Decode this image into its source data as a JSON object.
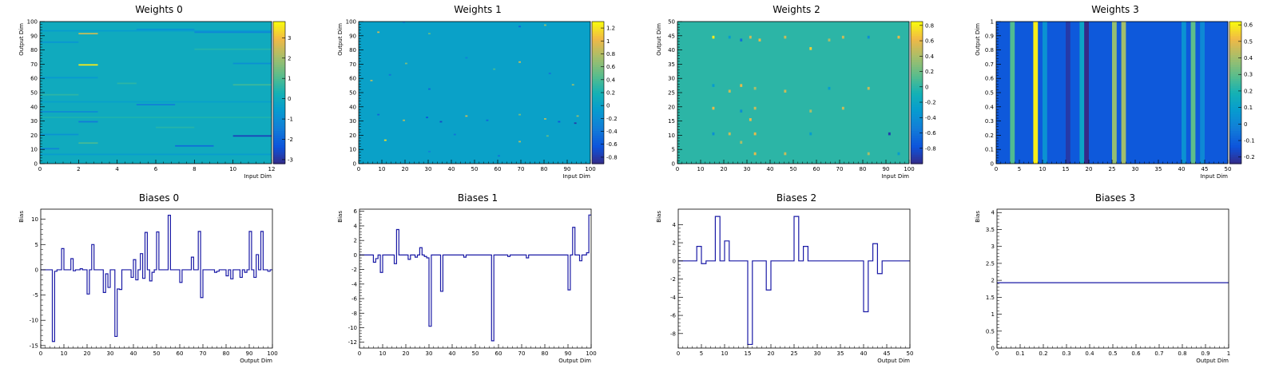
{
  "chart_data": [
    {
      "panel": "weights",
      "type": "heatmap",
      "title": "Weights 0",
      "xlabel": "Input Dim",
      "ylabel": "Output Dim",
      "xlim": [
        0,
        12
      ],
      "ylim": [
        0,
        100
      ],
      "x_ticks": [
        0,
        2,
        4,
        6,
        8,
        10,
        12
      ],
      "y_ticks": [
        0,
        10,
        20,
        30,
        40,
        50,
        60,
        70,
        80,
        90,
        100
      ],
      "zlim": [
        -3.2,
        3.8
      ],
      "z_ticks": [
        -3,
        -2,
        -1,
        0,
        1,
        2,
        3
      ],
      "background_value": 0,
      "cells": [
        {
          "x": 2,
          "y": 91,
          "w": 1,
          "v": 2.4
        },
        {
          "x": 2,
          "y": 69,
          "w": 1,
          "v": 3.6
        },
        {
          "x": 0,
          "y": 93,
          "w": 12,
          "v": -0.5
        },
        {
          "x": 0,
          "y": 85,
          "w": 2,
          "v": -0.7
        },
        {
          "x": 8,
          "y": 92,
          "w": 4,
          "v": -1.2
        },
        {
          "x": 5,
          "y": 94,
          "w": 3,
          "v": -0.8
        },
        {
          "x": 0,
          "y": 60,
          "w": 3,
          "v": -0.6
        },
        {
          "x": 10,
          "y": 70,
          "w": 2,
          "v": -0.9
        },
        {
          "x": 5,
          "y": 41,
          "w": 2,
          "v": -1.4
        },
        {
          "x": 0,
          "y": 43,
          "w": 12,
          "v": -0.4
        },
        {
          "x": 0,
          "y": 36,
          "w": 3,
          "v": -1.0
        },
        {
          "x": 2,
          "y": 29,
          "w": 1,
          "v": -1.5
        },
        {
          "x": 0,
          "y": 20,
          "w": 2,
          "v": -0.8
        },
        {
          "x": 10,
          "y": 19,
          "w": 2,
          "v": -2.7
        },
        {
          "x": 7,
          "y": 12,
          "w": 2,
          "v": -1.8
        },
        {
          "x": 0,
          "y": 6,
          "w": 12,
          "v": -0.5
        },
        {
          "x": 2,
          "y": 14,
          "w": 1,
          "v": 0.9
        },
        {
          "x": 0,
          "y": 32,
          "w": 12,
          "v": 0.4
        },
        {
          "x": 10,
          "y": 55,
          "w": 2,
          "v": 0.8
        },
        {
          "x": 4,
          "y": 56,
          "w": 1,
          "v": 0.6
        },
        {
          "x": 8,
          "y": 80,
          "w": 4,
          "v": 0.5
        },
        {
          "x": 0,
          "y": 48,
          "w": 2,
          "v": 0.6
        },
        {
          "x": 6,
          "y": 25,
          "w": 2,
          "v": 0.5
        },
        {
          "x": 0,
          "y": 10,
          "w": 1,
          "v": -1.2
        }
      ]
    },
    {
      "panel": "weights",
      "type": "heatmap",
      "title": "Weights 1",
      "xlabel": "Input Dim",
      "ylabel": "Output Dim",
      "xlim": [
        0,
        100
      ],
      "ylim": [
        0,
        100
      ],
      "x_ticks": [
        0,
        10,
        20,
        30,
        40,
        50,
        60,
        70,
        80,
        90,
        100
      ],
      "y_ticks": [
        0,
        10,
        20,
        30,
        40,
        50,
        60,
        70,
        80,
        90,
        100
      ],
      "zlim": [
        -0.9,
        1.3
      ],
      "z_ticks": [
        -0.8,
        -0.6,
        -0.4,
        -0.2,
        0,
        0.2,
        0.4,
        0.6,
        0.8,
        1,
        1.2
      ],
      "background_value": 0,
      "cells": [
        {
          "x": 19,
          "y": 99,
          "w": 1,
          "v": -0.3
        },
        {
          "x": 8,
          "y": 92,
          "w": 1,
          "v": 0.9
        },
        {
          "x": 30,
          "y": 91,
          "w": 1,
          "v": 0.5
        },
        {
          "x": 69,
          "y": 96,
          "w": 1,
          "v": -0.5
        },
        {
          "x": 80,
          "y": 97,
          "w": 1,
          "v": 0.7
        },
        {
          "x": 5,
          "y": 58,
          "w": 1,
          "v": 0.8
        },
        {
          "x": 13,
          "y": 62,
          "w": 1,
          "v": -0.4
        },
        {
          "x": 20,
          "y": 70,
          "w": 1,
          "v": 0.6
        },
        {
          "x": 30,
          "y": 52,
          "w": 1,
          "v": -0.5
        },
        {
          "x": 46,
          "y": 74,
          "w": 1,
          "v": -0.3
        },
        {
          "x": 58,
          "y": 66,
          "w": 1,
          "v": 0.4
        },
        {
          "x": 69,
          "y": 71,
          "w": 1,
          "v": 0.9
        },
        {
          "x": 82,
          "y": 63,
          "w": 1,
          "v": -0.4
        },
        {
          "x": 92,
          "y": 55,
          "w": 1,
          "v": 0.7
        },
        {
          "x": 8,
          "y": 34,
          "w": 1,
          "v": -0.5
        },
        {
          "x": 19,
          "y": 30,
          "w": 1,
          "v": 0.8
        },
        {
          "x": 29,
          "y": 32,
          "w": 1,
          "v": -0.6
        },
        {
          "x": 35,
          "y": 29,
          "w": 1,
          "v": -0.7
        },
        {
          "x": 46,
          "y": 33,
          "w": 1,
          "v": 0.9
        },
        {
          "x": 55,
          "y": 30,
          "w": 1,
          "v": -0.5
        },
        {
          "x": 69,
          "y": 34,
          "w": 1,
          "v": 0.6
        },
        {
          "x": 80,
          "y": 31,
          "w": 1,
          "v": 0.8
        },
        {
          "x": 86,
          "y": 29,
          "w": 1,
          "v": -0.6
        },
        {
          "x": 93,
          "y": 28,
          "w": 1,
          "v": -0.8
        },
        {
          "x": 94,
          "y": 33,
          "w": 1,
          "v": 0.7
        },
        {
          "x": 11,
          "y": 16,
          "w": 1,
          "v": 1.2
        },
        {
          "x": 41,
          "y": 20,
          "w": 1,
          "v": -0.4
        },
        {
          "x": 69,
          "y": 15,
          "w": 1,
          "v": 0.8
        },
        {
          "x": 81,
          "y": 19,
          "w": 1,
          "v": 0.5
        },
        {
          "x": 30,
          "y": 8,
          "w": 1,
          "v": -0.3
        },
        {
          "x": 60,
          "y": 5,
          "w": 1,
          "v": -0.4
        }
      ]
    },
    {
      "panel": "weights",
      "type": "heatmap",
      "title": "Weights 2",
      "xlabel": "Input Dim",
      "ylabel": "Output Dim",
      "xlim": [
        0,
        100
      ],
      "ylim": [
        0,
        50
      ],
      "x_ticks": [
        0,
        10,
        20,
        30,
        40,
        50,
        60,
        70,
        80,
        90,
        100
      ],
      "y_ticks": [
        0,
        5,
        10,
        15,
        20,
        25,
        30,
        35,
        40,
        45,
        50
      ],
      "zlim": [
        -1.0,
        0.85
      ],
      "z_ticks": [
        -0.8,
        -0.6,
        -0.4,
        -0.2,
        0,
        0.2,
        0.4,
        0.6,
        0.8
      ],
      "background_value": 0,
      "cells": [
        {
          "x": 15,
          "y": 44,
          "w": 1,
          "v": 0.8
        },
        {
          "x": 22,
          "y": 44,
          "w": 1,
          "v": -0.3
        },
        {
          "x": 27,
          "y": 43,
          "w": 1,
          "v": -0.6
        },
        {
          "x": 31,
          "y": 44,
          "w": 1,
          "v": 0.5
        },
        {
          "x": 35,
          "y": 43,
          "w": 1,
          "v": 0.6
        },
        {
          "x": 46,
          "y": 44,
          "w": 1,
          "v": 0.5
        },
        {
          "x": 57,
          "y": 40,
          "w": 1,
          "v": 0.7
        },
        {
          "x": 65,
          "y": 43,
          "w": 1,
          "v": 0.4
        },
        {
          "x": 71,
          "y": 44,
          "w": 1,
          "v": 0.5
        },
        {
          "x": 82,
          "y": 44,
          "w": 1,
          "v": -0.4
        },
        {
          "x": 95,
          "y": 44,
          "w": 1,
          "v": 0.6
        },
        {
          "x": 15,
          "y": 27,
          "w": 1,
          "v": -0.3
        },
        {
          "x": 22,
          "y": 25,
          "w": 1,
          "v": 0.5
        },
        {
          "x": 27,
          "y": 27,
          "w": 1,
          "v": 0.6
        },
        {
          "x": 33,
          "y": 26,
          "w": 1,
          "v": 0.4
        },
        {
          "x": 46,
          "y": 25,
          "w": 1,
          "v": 0.5
        },
        {
          "x": 65,
          "y": 26,
          "w": 1,
          "v": -0.3
        },
        {
          "x": 82,
          "y": 26,
          "w": 1,
          "v": 0.5
        },
        {
          "x": 15,
          "y": 19,
          "w": 1,
          "v": 0.6
        },
        {
          "x": 27,
          "y": 18,
          "w": 1,
          "v": -0.4
        },
        {
          "x": 33,
          "y": 19,
          "w": 1,
          "v": 0.5
        },
        {
          "x": 57,
          "y": 18,
          "w": 1,
          "v": 0.4
        },
        {
          "x": 71,
          "y": 19,
          "w": 1,
          "v": 0.5
        },
        {
          "x": 31,
          "y": 15,
          "w": 1,
          "v": 0.6
        },
        {
          "x": 15,
          "y": 10,
          "w": 1,
          "v": -0.4
        },
        {
          "x": 22,
          "y": 10,
          "w": 1,
          "v": 0.5
        },
        {
          "x": 33,
          "y": 10,
          "w": 1,
          "v": 0.6
        },
        {
          "x": 57,
          "y": 10,
          "w": 1,
          "v": -0.3
        },
        {
          "x": 91,
          "y": 10,
          "w": 1,
          "v": -0.9
        },
        {
          "x": 27,
          "y": 7,
          "w": 1,
          "v": 0.4
        },
        {
          "x": 33,
          "y": 3,
          "w": 1,
          "v": 0.6
        },
        {
          "x": 46,
          "y": 3,
          "w": 1,
          "v": 0.5
        },
        {
          "x": 82,
          "y": 3,
          "w": 1,
          "v": 0.4
        },
        {
          "x": 95,
          "y": 3,
          "w": 1,
          "v": -0.3
        }
      ]
    },
    {
      "panel": "weights",
      "type": "heatmap",
      "title": "Weights 3",
      "xlabel": "Input Dim",
      "ylabel": "Output Dim",
      "xlim": [
        0,
        50
      ],
      "ylim": [
        0,
        1
      ],
      "x_ticks": [
        0,
        5,
        10,
        15,
        20,
        25,
        30,
        35,
        40,
        45,
        50
      ],
      "y_ticks": [
        0,
        0.1,
        0.2,
        0.3,
        0.4,
        0.5,
        0.6,
        0.7,
        0.8,
        0.9,
        1
      ],
      "zlim": [
        -0.24,
        0.62
      ],
      "z_ticks": [
        -0.2,
        -0.1,
        0,
        0.1,
        0.2,
        0.3,
        0.4,
        0.5,
        0.6
      ],
      "background_value": -0.12,
      "columns": [
        {
          "x": 3,
          "v": 0.28
        },
        {
          "x": 8,
          "v": 0.6
        },
        {
          "x": 10,
          "v": 0.05
        },
        {
          "x": 15,
          "v": -0.2
        },
        {
          "x": 18,
          "v": 0.12
        },
        {
          "x": 19,
          "v": -0.24
        },
        {
          "x": 25,
          "v": 0.38
        },
        {
          "x": 27,
          "v": 0.4
        },
        {
          "x": 40,
          "v": 0.05
        },
        {
          "x": 42,
          "v": 0.3
        },
        {
          "x": 44,
          "v": 0.02
        }
      ]
    },
    {
      "panel": "biases",
      "type": "line",
      "title": "Biases 0",
      "xlabel": "Output Dim",
      "ylabel": "Bias",
      "xlim": [
        0,
        100
      ],
      "ylim": [
        -15.5,
        12
      ],
      "x_ticks": [
        0,
        10,
        20,
        30,
        40,
        50,
        60,
        70,
        80,
        90,
        100
      ],
      "y_ticks": [
        -15,
        -10,
        -5,
        0,
        5,
        10
      ],
      "y": [
        0,
        0,
        0,
        0,
        0,
        -14.2,
        -0.3,
        0,
        0,
        4.2,
        0,
        0,
        0,
        2.2,
        -0.2,
        0,
        0,
        0.2,
        0,
        0,
        -4.8,
        0,
        5,
        0,
        0,
        0,
        0,
        -4.5,
        -0.8,
        -3.5,
        0,
        0,
        -13.2,
        -3.8,
        -3.9,
        0,
        0,
        0,
        0,
        -1.5,
        2,
        -2,
        0,
        3.2,
        -1.7,
        7.4,
        0,
        -2.2,
        -0.5,
        0,
        7.5,
        0,
        0,
        0,
        0,
        10.8,
        0,
        0,
        0,
        0,
        -2.5,
        0,
        0,
        0,
        0,
        2.5,
        0,
        0,
        7.6,
        -5.5,
        0,
        0,
        0,
        0,
        0,
        -0.5,
        -0.3,
        0,
        0,
        0,
        -1.2,
        0,
        -1.8,
        0,
        0,
        0,
        -1.5,
        0,
        -0.5,
        0,
        7.6,
        0,
        -1.5,
        3,
        0,
        7.6,
        0,
        0,
        -0.3,
        0
      ]
    },
    {
      "panel": "biases",
      "type": "line",
      "title": "Biases 1",
      "xlabel": "Output Dim",
      "ylabel": "Bias",
      "xlim": [
        0,
        100
      ],
      "ylim": [
        -12.8,
        6.3
      ],
      "x_ticks": [
        0,
        10,
        20,
        30,
        40,
        50,
        60,
        70,
        80,
        90,
        100
      ],
      "y_ticks": [
        -12,
        -10,
        -8,
        -6,
        -4,
        -2,
        0,
        2,
        4,
        6
      ],
      "y": [
        0,
        0,
        0,
        0,
        0,
        0,
        -1,
        -0.5,
        0,
        -2.4,
        0,
        0,
        0,
        0,
        0,
        -1.2,
        3.5,
        0,
        0,
        0,
        0,
        -0.6,
        0,
        0,
        -0.3,
        0,
        1,
        0,
        -0.2,
        -0.4,
        -9.8,
        0,
        0,
        0,
        0,
        -5,
        0,
        0,
        0,
        0,
        0,
        0,
        0,
        0,
        0,
        -0.3,
        0,
        0,
        0,
        0,
        0,
        0,
        0,
        0,
        0,
        0,
        0,
        -11.8,
        0,
        0,
        0,
        0,
        0,
        0,
        -0.2,
        0,
        0,
        0,
        0,
        0,
        0,
        0,
        -0.4,
        0,
        0,
        0,
        0,
        0,
        0,
        0,
        0,
        0,
        0,
        0,
        0,
        0,
        0,
        0,
        0,
        0,
        -4.8,
        0,
        3.8,
        0,
        0,
        -0.8,
        0,
        0,
        0.3,
        5.5
      ]
    },
    {
      "panel": "biases",
      "type": "line",
      "title": "Biases 2",
      "xlabel": "Output Dim",
      "ylabel": "Bias",
      "xlim": [
        0,
        50
      ],
      "ylim": [
        -9.6,
        5.7
      ],
      "x_ticks": [
        0,
        5,
        10,
        15,
        20,
        25,
        30,
        35,
        40,
        45,
        50
      ],
      "y_ticks": [
        -8,
        -6,
        -4,
        -2,
        0,
        2,
        4
      ],
      "y": [
        0,
        0,
        0,
        0,
        1.6,
        -0.3,
        0,
        0,
        4.9,
        0,
        2.2,
        0,
        0,
        0,
        0,
        -9.2,
        0,
        0,
        0,
        -3.2,
        0,
        0,
        0,
        0,
        0,
        4.9,
        0,
        1.6,
        0,
        0,
        0,
        0,
        0,
        0,
        0,
        0,
        0,
        0,
        0,
        0,
        -5.6,
        0,
        1.9,
        -1.4,
        0,
        0,
        0,
        0,
        0,
        0
      ]
    },
    {
      "panel": "biases",
      "type": "line",
      "title": "Biases 3",
      "xlabel": "Output Dim",
      "ylabel": "Bias",
      "xlim": [
        0,
        1
      ],
      "ylim": [
        0,
        4.1
      ],
      "x_ticks": [
        0,
        0.1,
        0.2,
        0.3,
        0.4,
        0.5,
        0.6,
        0.7,
        0.8,
        0.9,
        1
      ],
      "y_ticks": [
        0,
        0.5,
        1,
        1.5,
        2,
        2.5,
        3,
        3.5,
        4
      ],
      "y": [
        1.93
      ]
    }
  ]
}
